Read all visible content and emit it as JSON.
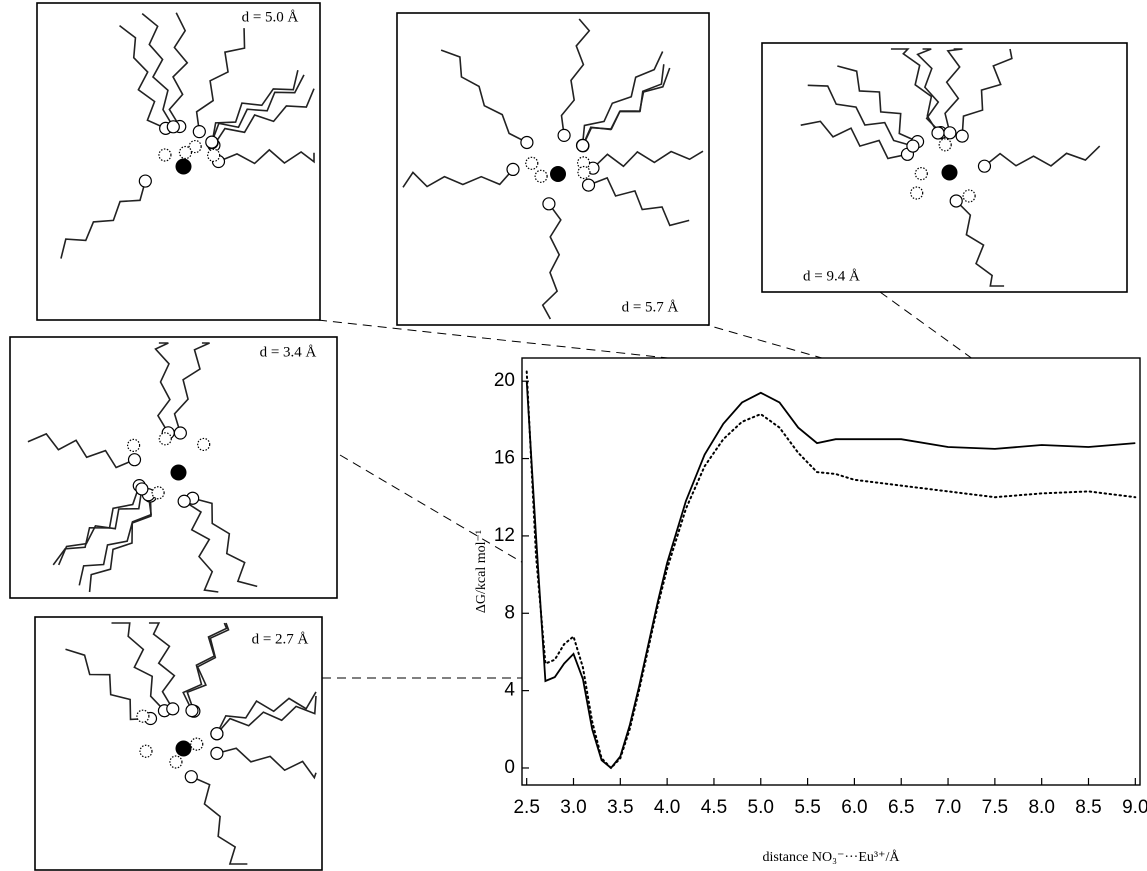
{
  "chart_data": {
    "type": "line",
    "x_label": "distance NO₃⁻···Eu³⁺/Å",
    "y_label": "ΔG/kcal mol⁻¹",
    "x": [
      2.5,
      2.6,
      2.7,
      2.8,
      2.9,
      3.0,
      3.1,
      3.2,
      3.3,
      3.4,
      3.5,
      3.6,
      3.7,
      3.8,
      3.9,
      4.0,
      4.2,
      4.4,
      4.6,
      4.8,
      5.0,
      5.2,
      5.4,
      5.6,
      5.8,
      6.0,
      6.5,
      7.0,
      7.5,
      8.0,
      8.5,
      9.0
    ],
    "series": [
      {
        "color": "#000000",
        "style": "solid",
        "values": [
          20,
          12,
          4.5,
          4.7,
          5.4,
          5.9,
          4.6,
          2,
          0.4,
          0,
          0.6,
          2.2,
          4.2,
          6.4,
          8.6,
          10.6,
          13.8,
          16.2,
          17.8,
          18.9,
          19.4,
          18.9,
          17.6,
          16.8,
          17.0,
          17.0,
          17.0,
          16.6,
          16.5,
          16.7,
          16.6,
          16.8
        ]
      },
      {
        "color": "#000000",
        "style": "dotted",
        "values": [
          20.5,
          11,
          5.4,
          5.6,
          6.4,
          6.8,
          5.2,
          2.4,
          0.5,
          0,
          0.5,
          2,
          4,
          6.2,
          8.4,
          10.3,
          13.4,
          15.6,
          17,
          17.9,
          18.3,
          17.6,
          16.3,
          15.3,
          15.2,
          14.9,
          14.6,
          14.3,
          14.0,
          14.2,
          14.3,
          14.0
        ]
      }
    ],
    "xlim": [
      2.45,
      9.05
    ],
    "ylim": [
      -0.88,
      21.2
    ],
    "xticks": [
      2.5,
      {
        "value": 3,
        "label": "3.0"
      },
      3.5,
      {
        "value": 4,
        "label": "4.0"
      },
      4.5,
      {
        "value": 5,
        "label": "5.0"
      },
      5.5,
      {
        "value": 6,
        "label": "6.0"
      },
      6.5,
      {
        "value": 7,
        "label": "7.0"
      },
      7.5,
      {
        "value": 8,
        "label": "8.0"
      },
      8.5,
      {
        "value": 9,
        "label": "9.0"
      }
    ],
    "yticks": [
      0,
      4,
      8,
      12,
      16,
      20
    ],
    "grid": false,
    "annotations": [
      {
        "text": "d = 5.0 Å"
      },
      {
        "text": "d = 5.7 Å"
      },
      {
        "text": "d = 9.4 Å"
      },
      {
        "text": "d = 3.4 Å"
      },
      {
        "text": "d = 2.7 Å"
      }
    ]
  }
}
